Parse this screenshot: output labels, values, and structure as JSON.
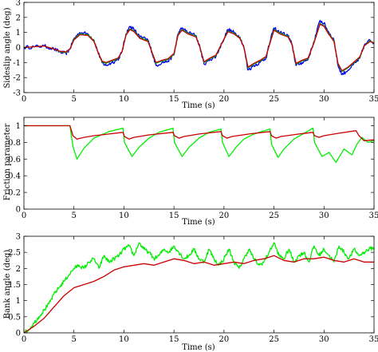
{
  "chart_data": [
    {
      "type": "line",
      "xlabel": "Time (s)",
      "ylabel": "Sideslip angle (deg)",
      "xlim": [
        0,
        35
      ],
      "ylim": [
        -3,
        3
      ],
      "xticks": [
        0,
        5,
        10,
        15,
        20,
        25,
        30,
        35
      ],
      "yticks": [
        -3,
        -2,
        -1,
        0,
        1,
        2,
        3
      ],
      "grid": false,
      "series": [
        {
          "color": "#0000ee",
          "noisy": true,
          "x": [
            0,
            1,
            2,
            3,
            3.6,
            4.2,
            4.6,
            5,
            5.6,
            6.4,
            7,
            7.4,
            7.8,
            8.2,
            8.8,
            9.4,
            9.8,
            10.2,
            10.6,
            11,
            11.6,
            12.4,
            12.8,
            13.2,
            13.8,
            14.4,
            15,
            15.4,
            15.8,
            16.4,
            17.2,
            17.6,
            18,
            18.6,
            19.2,
            19.8,
            20.4,
            21,
            21.6,
            22,
            22.4,
            23,
            23.6,
            24.2,
            24.6,
            25,
            25.6,
            26.4,
            26.8,
            27.2,
            27.8,
            28.4,
            29,
            29.6,
            30,
            30.4,
            31,
            31.4,
            31.8,
            32.4,
            33.2,
            33.6,
            34,
            34.6,
            35
          ],
          "y": [
            0,
            0.05,
            0.1,
            -0.1,
            -0.3,
            -0.4,
            -0.1,
            0.6,
            1.0,
            0.9,
            0.5,
            -0.3,
            -1.0,
            -1.2,
            -1.0,
            -0.8,
            -0.3,
            0.9,
            1.4,
            1.2,
            0.7,
            0.5,
            -0.3,
            -1.2,
            -1.0,
            -0.9,
            -0.5,
            0.9,
            1.3,
            1.0,
            0.8,
            0.0,
            -1.1,
            -0.8,
            -0.6,
            0.3,
            1.2,
            1.0,
            0.7,
            0.0,
            -1.5,
            -1.2,
            -1.0,
            -0.7,
            0.4,
            1.3,
            1.0,
            0.8,
            0.2,
            -1.2,
            -1.0,
            -0.8,
            0.4,
            1.8,
            1.6,
            1.1,
            0.5,
            -1.2,
            -1.8,
            -1.5,
            -1.0,
            -0.7,
            0.1,
            0.5,
            0.3
          ]
        },
        {
          "color": "#00aa00",
          "noisy": false,
          "x": [
            0,
            1,
            2,
            3,
            3.6,
            4.2,
            4.6,
            5,
            5.6,
            6.4,
            7,
            7.4,
            7.8,
            8.2,
            8.8,
            9.4,
            9.8,
            10.2,
            10.6,
            11,
            11.6,
            12.4,
            12.8,
            13.2,
            13.8,
            14.4,
            15,
            15.4,
            15.8,
            16.4,
            17.2,
            17.6,
            18,
            18.6,
            19.2,
            19.8,
            20.4,
            21,
            21.6,
            22,
            22.4,
            23,
            23.6,
            24.2,
            24.6,
            25,
            25.6,
            26.4,
            26.8,
            27.2,
            27.8,
            28.4,
            29,
            29.6,
            30,
            30.4,
            31,
            31.4,
            31.8,
            32.4,
            33.2,
            33.6,
            34,
            34.6,
            35
          ],
          "y": [
            0,
            0.05,
            0.1,
            -0.1,
            -0.28,
            -0.35,
            -0.1,
            0.55,
            0.9,
            0.85,
            0.45,
            -0.3,
            -0.95,
            -1.05,
            -0.9,
            -0.75,
            -0.3,
            0.85,
            1.25,
            1.1,
            0.65,
            0.45,
            -0.3,
            -1.05,
            -0.9,
            -0.8,
            -0.45,
            0.85,
            1.2,
            0.95,
            0.75,
            0.0,
            -1.0,
            -0.75,
            -0.55,
            0.3,
            1.1,
            0.95,
            0.65,
            0.0,
            -1.35,
            -1.1,
            -0.9,
            -0.65,
            0.35,
            1.2,
            0.95,
            0.75,
            0.2,
            -1.1,
            -0.9,
            -0.75,
            0.35,
            1.6,
            1.45,
            1.0,
            0.45,
            -1.1,
            -1.6,
            -1.35,
            -0.9,
            -0.65,
            0.1,
            0.45,
            0.3
          ]
        },
        {
          "color": "#cc0000",
          "noisy": false,
          "x": [
            0,
            1,
            2,
            3,
            3.6,
            4.2,
            4.6,
            5,
            5.6,
            6.4,
            7,
            7.4,
            7.8,
            8.2,
            8.8,
            9.4,
            9.8,
            10.2,
            10.6,
            11,
            11.6,
            12.4,
            12.8,
            13.2,
            13.8,
            14.4,
            15,
            15.4,
            15.8,
            16.4,
            17.2,
            17.6,
            18,
            18.6,
            19.2,
            19.8,
            20.4,
            21,
            21.6,
            22,
            22.4,
            23,
            23.6,
            24.2,
            24.6,
            25,
            25.6,
            26.4,
            26.8,
            27.2,
            27.8,
            28.4,
            29,
            29.6,
            30,
            30.4,
            31,
            31.4,
            31.8,
            32.4,
            33.2,
            33.6,
            34,
            34.6,
            35
          ],
          "y": [
            0,
            0.05,
            0.1,
            -0.1,
            -0.25,
            -0.3,
            -0.1,
            0.5,
            0.85,
            0.8,
            0.4,
            -0.3,
            -0.9,
            -1.0,
            -0.85,
            -0.7,
            -0.3,
            0.8,
            1.2,
            1.05,
            0.6,
            0.4,
            -0.3,
            -1.0,
            -0.85,
            -0.75,
            -0.4,
            0.8,
            1.15,
            0.9,
            0.7,
            0.0,
            -0.95,
            -0.7,
            -0.5,
            0.3,
            1.05,
            0.9,
            0.6,
            0.0,
            -1.3,
            -1.05,
            -0.85,
            -0.6,
            0.3,
            1.15,
            0.9,
            0.7,
            0.2,
            -1.05,
            -0.85,
            -0.7,
            0.3,
            1.55,
            1.4,
            0.95,
            0.4,
            -1.05,
            -1.55,
            -1.3,
            -0.85,
            -0.6,
            0.1,
            0.4,
            0.3
          ]
        }
      ]
    },
    {
      "type": "line",
      "xlabel": "Time (s)",
      "ylabel": "Friction parameter",
      "xlim": [
        0,
        35
      ],
      "ylim": [
        0,
        1.1
      ],
      "xticks": [
        0,
        5,
        10,
        15,
        20,
        25,
        30,
        35
      ],
      "yticks": [
        0,
        0.2,
        0.4,
        0.6,
        0.8,
        1
      ],
      "grid": false,
      "series": [
        {
          "color": "#00ee00",
          "noisy": false,
          "x": [
            0,
            4.6,
            4.9,
            5.3,
            6,
            7,
            8.5,
            9.9,
            10.05,
            10.8,
            11.5,
            12.5,
            13.5,
            14.9,
            15.05,
            15.8,
            16.5,
            17.5,
            18.5,
            19.7,
            19.85,
            20.5,
            21.2,
            22,
            23,
            24.6,
            24.75,
            25.4,
            26,
            27,
            28.9,
            29.05,
            29.8,
            30.5,
            31.2,
            32,
            32.8,
            33.3,
            33.8,
            34.4,
            35
          ],
          "y": [
            1,
            1,
            0.75,
            0.6,
            0.73,
            0.85,
            0.93,
            0.97,
            0.8,
            0.63,
            0.74,
            0.85,
            0.92,
            0.97,
            0.8,
            0.63,
            0.74,
            0.85,
            0.92,
            0.96,
            0.8,
            0.63,
            0.74,
            0.84,
            0.9,
            0.96,
            0.78,
            0.62,
            0.72,
            0.84,
            0.97,
            0.8,
            0.63,
            0.68,
            0.56,
            0.72,
            0.65,
            0.78,
            0.86,
            0.8,
            0.82
          ]
        },
        {
          "color": "#cc0000",
          "noisy": false,
          "x": [
            0,
            4.6,
            4.9,
            5.3,
            6,
            7,
            8.5,
            9.9,
            10.05,
            10.5,
            11,
            12.5,
            14.9,
            15.05,
            15.5,
            16,
            17.5,
            19.7,
            19.85,
            20.3,
            20.8,
            22.5,
            24.6,
            24.75,
            25.2,
            25.7,
            27.5,
            28.9,
            29.05,
            29.5,
            30,
            31.5,
            33.2,
            33.5,
            34,
            35
          ],
          "y": [
            1,
            1,
            0.88,
            0.84,
            0.86,
            0.88,
            0.9,
            0.92,
            0.87,
            0.84,
            0.86,
            0.89,
            0.92,
            0.88,
            0.85,
            0.87,
            0.9,
            0.93,
            0.88,
            0.85,
            0.87,
            0.9,
            0.93,
            0.88,
            0.85,
            0.87,
            0.9,
            0.92,
            0.88,
            0.86,
            0.88,
            0.91,
            0.94,
            0.88,
            0.82,
            0.83
          ]
        }
      ]
    },
    {
      "type": "line",
      "xlabel": "Time (s)",
      "ylabel": "Bank angle (deg)",
      "xlim": [
        0,
        35
      ],
      "ylim": [
        0,
        3
      ],
      "xticks": [
        0,
        5,
        10,
        15,
        20,
        25,
        30,
        35
      ],
      "yticks": [
        0,
        0.5,
        1,
        1.5,
        2,
        2.5,
        3
      ],
      "grid": false,
      "series": [
        {
          "color": "#00ee00",
          "noisy": true,
          "x": [
            0,
            0.5,
            1,
            1.5,
            2,
            2.5,
            3,
            3.5,
            4,
            4.5,
            5,
            5.5,
            6,
            6.5,
            7,
            7.5,
            8,
            8.5,
            9,
            9.5,
            10,
            10.5,
            11,
            11.5,
            12,
            12.5,
            13,
            13.5,
            14,
            14.5,
            15,
            15.5,
            16,
            16.5,
            17,
            17.5,
            18,
            18.5,
            19,
            19.5,
            20,
            20.5,
            21,
            21.5,
            22,
            22.5,
            23,
            23.5,
            24,
            24.5,
            25,
            25.5,
            26,
            26.5,
            27,
            27.5,
            28,
            28.5,
            29,
            29.5,
            30,
            30.5,
            31,
            31.5,
            32,
            32.5,
            33,
            33.5,
            34,
            34.5,
            35
          ],
          "y": [
            0.0,
            0.1,
            0.3,
            0.5,
            0.7,
            0.9,
            1.2,
            1.4,
            1.6,
            1.8,
            2.0,
            2.1,
            2.0,
            2.2,
            2.3,
            2.0,
            2.4,
            2.2,
            2.3,
            2.4,
            2.6,
            2.7,
            2.4,
            2.8,
            2.6,
            2.5,
            2.3,
            2.4,
            2.6,
            2.5,
            2.7,
            2.5,
            2.3,
            2.4,
            2.6,
            2.3,
            2.2,
            2.6,
            2.3,
            2.1,
            2.3,
            2.6,
            2.2,
            2.0,
            2.3,
            2.6,
            2.3,
            2.1,
            2.2,
            2.5,
            2.8,
            2.4,
            2.3,
            2.6,
            2.2,
            2.4,
            2.5,
            2.2,
            2.7,
            2.4,
            2.6,
            2.4,
            2.2,
            2.7,
            2.5,
            2.3,
            2.6,
            2.4,
            2.5,
            2.6,
            2.65
          ]
        },
        {
          "color": "#cc0000",
          "noisy": false,
          "x": [
            0,
            1,
            2,
            3,
            4,
            5,
            6,
            7,
            8,
            9,
            10,
            11,
            12,
            13,
            14,
            15,
            16,
            17,
            18,
            19,
            20,
            21,
            22,
            23,
            24,
            25,
            26,
            27,
            28,
            29,
            30,
            31,
            32,
            33,
            34,
            35
          ],
          "y": [
            0.0,
            0.2,
            0.45,
            0.8,
            1.15,
            1.4,
            1.5,
            1.6,
            1.75,
            1.95,
            2.05,
            2.1,
            2.15,
            2.1,
            2.2,
            2.3,
            2.25,
            2.15,
            2.2,
            2.1,
            2.15,
            2.2,
            2.15,
            2.25,
            2.3,
            2.4,
            2.25,
            2.2,
            2.3,
            2.3,
            2.35,
            2.25,
            2.2,
            2.3,
            2.2,
            2.2
          ]
        }
      ]
    }
  ]
}
